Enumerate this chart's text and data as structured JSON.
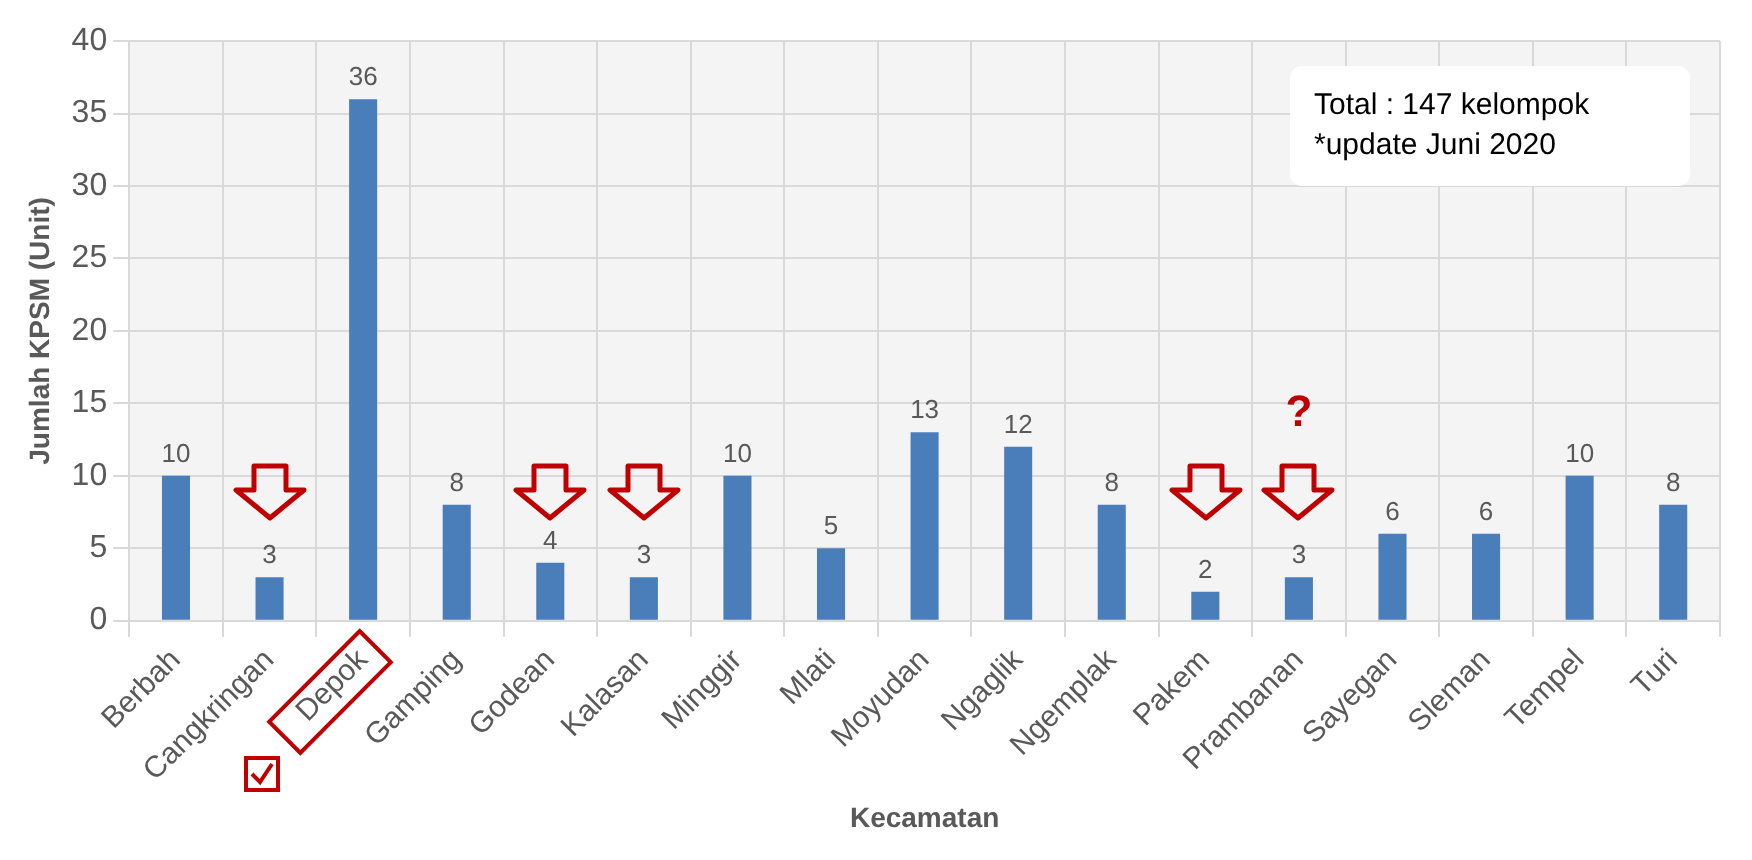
{
  "chart_data": {
    "type": "bar",
    "xlabel": "Kecamatan",
    "ylabel": "Jumlah KPSM (Unit)",
    "categories": [
      "Berbah",
      "Cangkringan",
      "Depok",
      "Gamping",
      "Godean",
      "Kalasan",
      "Minggir",
      "Mlati",
      "Moyudan",
      "Ngaglik",
      "Ngemplak",
      "Pakem",
      "Prambanan",
      "Sayegan",
      "Sleman",
      "Tempel",
      "Turi"
    ],
    "values": [
      10,
      3,
      36,
      8,
      4,
      3,
      10,
      5,
      13,
      12,
      8,
      2,
      3,
      6,
      6,
      10,
      8
    ],
    "color": "#4a7ebb",
    "ylim": [
      0,
      40
    ],
    "yticks": [
      0,
      5,
      10,
      15,
      20,
      25,
      30,
      35,
      40
    ],
    "grid": true,
    "data_labels": true,
    "annotations": [
      "Total : 147 kelompok",
      "*update Juni 2020",
      "?"
    ]
  }
}
